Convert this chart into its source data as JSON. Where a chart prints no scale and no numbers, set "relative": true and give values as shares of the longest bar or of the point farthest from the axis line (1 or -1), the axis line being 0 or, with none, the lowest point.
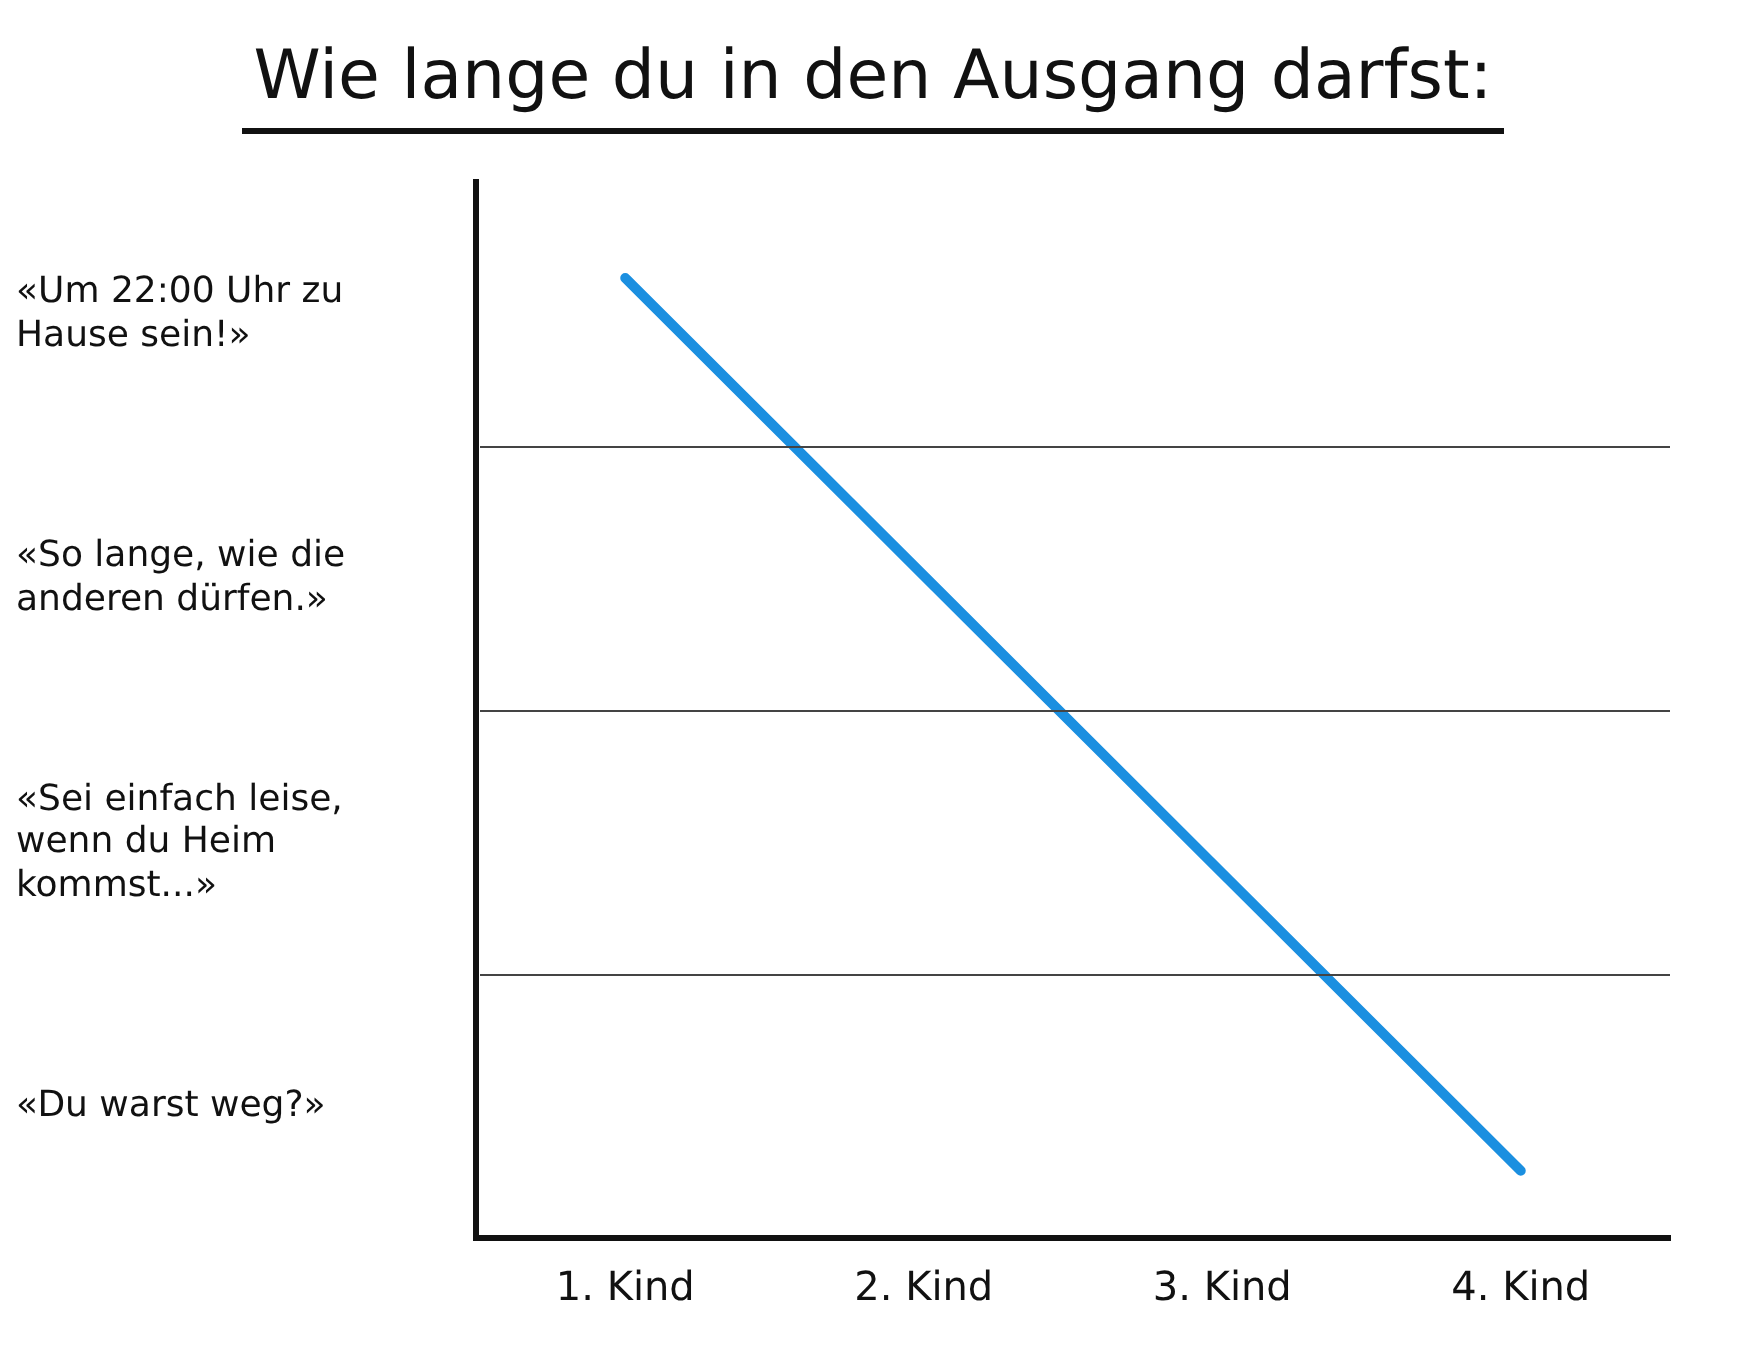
{
  "chart_data": {
    "type": "line",
    "title": "Wie lange du in den Ausgang darfst:",
    "categories": [
      "1. Kind",
      "2. Kind",
      "3. Kind",
      "4. Kind"
    ],
    "series": [
      {
        "color": "#1b8fe0",
        "values": [
          1,
          0.69,
          0.38,
          0.07
        ]
      }
    ],
    "relative": true,
    "annotations": [
      "«Um 22:00 Uhr zu Hause sein!»",
      "«So lange, wie die anderen dürfen.»",
      "«Sei einfach leise, wenn du Heim kommst...»",
      "«Du warst weg?»"
    ],
    "legend": false,
    "marker": "none",
    "line_style": "solid"
  }
}
